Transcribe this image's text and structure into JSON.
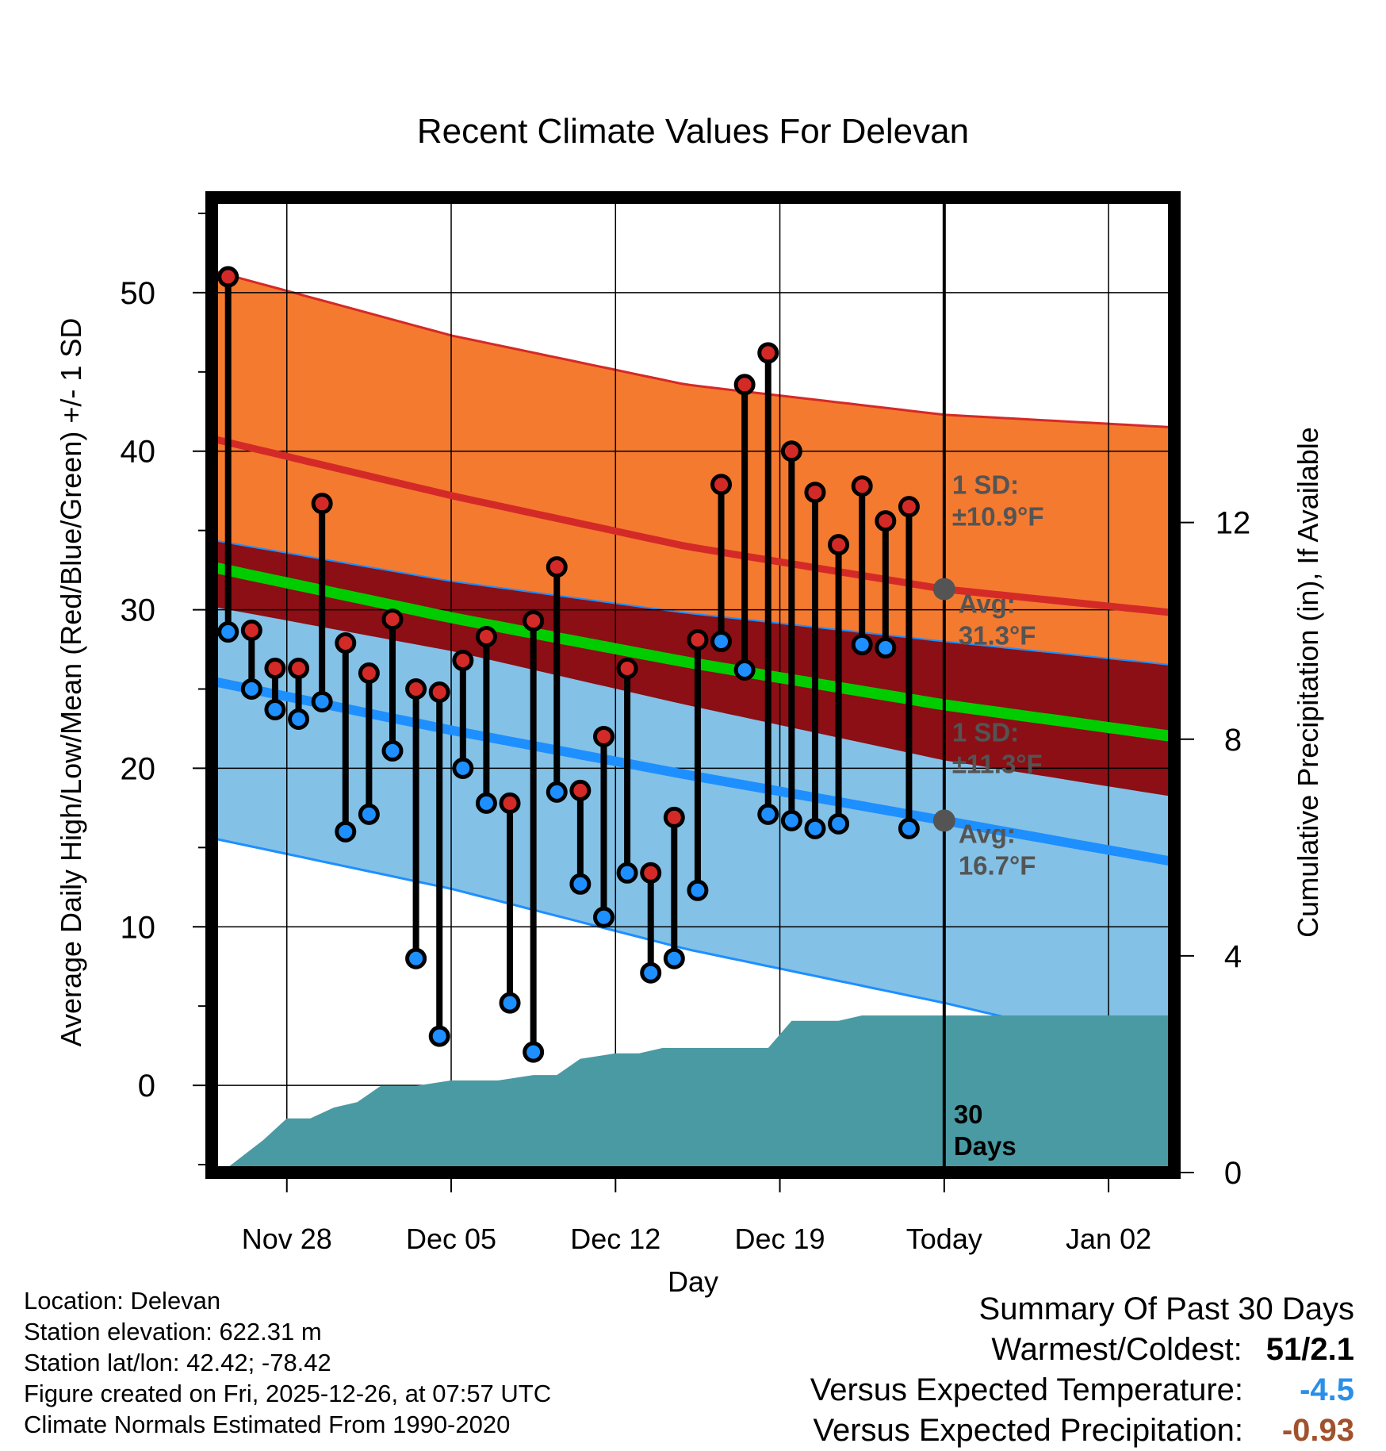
{
  "chart_data": {
    "type": "line",
    "title": "Recent Climate Values For Delevan",
    "xlabel": "Day",
    "ylabel": "Average Daily High/Low/Mean (Red/Blue/Green) +/- 1 SD",
    "y2label": "Cumulative Precipitation (in), If Available",
    "ylim": [
      -5.5,
      56
    ],
    "y_ticks": [
      0,
      10,
      20,
      30,
      40,
      50
    ],
    "y2lim": [
      0,
      18
    ],
    "y2_ticks": [
      0,
      4,
      8,
      12
    ],
    "x_ticks": [
      {
        "day": 3.5,
        "label": "Nov 28"
      },
      {
        "day": 10.5,
        "label": "Dec 05"
      },
      {
        "day": 17.5,
        "label": "Dec 12"
      },
      {
        "day": 24.5,
        "label": "Dec 19"
      },
      {
        "day": 31.5,
        "label": "Today"
      },
      {
        "day": 38.5,
        "label": "Jan 02"
      }
    ],
    "xlim": [
      0.3,
      41.3
    ],
    "grid": true,
    "normals": {
      "days": [
        0.3,
        10.5,
        20.5,
        31.5,
        41.3
      ],
      "high_avg": [
        40.8,
        37.2,
        34.0,
        31.3,
        29.8
      ],
      "high_sd_upper": [
        51.4,
        47.3,
        44.2,
        42.3,
        41.5
      ],
      "high_sd_lower": [
        30.2,
        27.4,
        24.0,
        20.5,
        18.2
      ],
      "low_avg": [
        25.5,
        22.4,
        19.6,
        16.7,
        14.1
      ],
      "low_sd_upper": [
        34.4,
        31.8,
        29.8,
        28.0,
        26.5
      ],
      "low_sd_lower": [
        15.6,
        12.4,
        8.6,
        5.2,
        1.8
      ],
      "mean_avg": [
        32.7,
        29.5,
        26.7,
        24.0,
        22.0
      ]
    },
    "observed": {
      "days": [
        1,
        2,
        3,
        4,
        5,
        6,
        7,
        8,
        9,
        10,
        11,
        12,
        13,
        14,
        15,
        16,
        17,
        18,
        19,
        20,
        21,
        22,
        23,
        24,
        25,
        26,
        27,
        28,
        29,
        30
      ],
      "highs": [
        51,
        28.7,
        26.3,
        26.3,
        36.7,
        27.9,
        26,
        29.4,
        25,
        24.8,
        26.8,
        28.3,
        17.8,
        29.3,
        32.7,
        18.6,
        22,
        26.3,
        13.4,
        16.9,
        28.1,
        37.9,
        44.2,
        46.2,
        40,
        37.4,
        34.1,
        37.8,
        35.6,
        36.5
      ],
      "lows": [
        28.6,
        25,
        23.7,
        23.1,
        24.2,
        16,
        17.1,
        21.1,
        8,
        3.1,
        20,
        17.8,
        5.2,
        2.1,
        18.5,
        12.7,
        10.6,
        13.4,
        7.1,
        8,
        12.3,
        28,
        26.2,
        17.1,
        16.7,
        16.2,
        16.5,
        27.8,
        27.6,
        16.2
      ]
    },
    "precip": {
      "days": [
        0.3,
        1,
        2.5,
        3.5,
        4.5,
        5.5,
        6.5,
        7.5,
        9,
        10.5,
        11.5,
        12.5,
        14,
        15,
        16,
        17.5,
        18.5,
        19.5,
        21,
        22,
        23,
        24,
        25,
        27,
        28,
        29,
        30,
        31.5,
        41.3
      ],
      "values": [
        0,
        0.1,
        0.6,
        1.0,
        1.0,
        1.2,
        1.3,
        1.6,
        1.6,
        1.7,
        1.7,
        1.7,
        1.8,
        1.8,
        2.1,
        2.2,
        2.2,
        2.3,
        2.3,
        2.3,
        2.3,
        2.3,
        2.8,
        2.8,
        2.9,
        2.9,
        2.9,
        2.9,
        2.9
      ]
    },
    "annotations": {
      "high_sd": "1 SD:\n±10.9°F",
      "high_avg": "Avg:\n31.3°F",
      "low_sd": "1 SD:\n±11.3°F",
      "low_avg": "Avg:\n16.7°F",
      "period": "30\nDays"
    },
    "high_avg_today": 31.3,
    "low_avg_today": 16.7,
    "colors": {
      "high_band": "#f47a30",
      "high_line": "#d42a27",
      "overlap_band": "#8b0f14",
      "mean_line": "#00cc00",
      "low_band": "#84c1e6",
      "low_line": "#1e8fff",
      "precip": "#4a9aa3",
      "annotation": "#545454",
      "high_dot": "#d42a27",
      "low_dot": "#1e8fff"
    }
  },
  "info": {
    "location": "Location: Delevan",
    "elevation": "Station elevation: 622.31 m",
    "latlon": "Station lat/lon: 42.42; -78.42",
    "created": "Figure created on Fri, 2025-12-26, at 07:57 UTC",
    "normals": "Climate Normals Estimated From 1990-2020"
  },
  "summary": {
    "title": "Summary Of Past 30 Days",
    "warm_cold_label": "Warmest/Coldest:",
    "warm_cold_value": "51/2.1",
    "temp_label": "Versus Expected Temperature:",
    "temp_value": "-4.5",
    "temp_color": "#2b8fe8",
    "precip_label": "Versus Expected Precipitation:",
    "precip_value": "-0.93",
    "precip_color": "#a0522d"
  }
}
